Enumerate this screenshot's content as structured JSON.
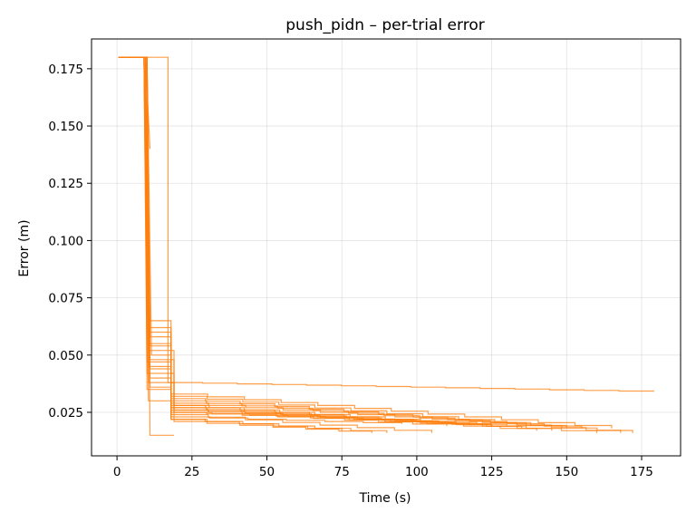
{
  "chart_data": {
    "type": "line",
    "title": "push_pidn – per-trial error",
    "xlabel": "Time (s)",
    "ylabel": "Error (m)",
    "xlim": [
      -8.5,
      188
    ],
    "ylim": [
      0.006,
      0.188
    ],
    "xticks": [
      0,
      25,
      50,
      75,
      100,
      125,
      150,
      175
    ],
    "yticks": [
      0.025,
      0.05,
      0.075,
      0.1,
      0.125,
      0.15,
      0.175
    ],
    "ytick_labels": [
      "0.025",
      "0.050",
      "0.075",
      "0.100",
      "0.125",
      "0.150",
      "0.175"
    ],
    "grid": true,
    "line_color": "#ff7f0e",
    "series": [
      {
        "x": [
          0.5,
          17,
          17,
          179
        ],
        "y": [
          0.18,
          0.18,
          0.038,
          0.034
        ]
      },
      {
        "x": [
          0.5,
          9,
          10,
          18,
          18,
          165
        ],
        "y": [
          0.18,
          0.18,
          0.055,
          0.055,
          0.033,
          0.018
        ]
      },
      {
        "x": [
          0.5,
          9.5,
          11,
          18,
          18,
          172
        ],
        "y": [
          0.18,
          0.18,
          0.065,
          0.065,
          0.03,
          0.016
        ]
      },
      {
        "x": [
          0.5,
          10,
          11,
          19,
          19,
          160
        ],
        "y": [
          0.18,
          0.18,
          0.048,
          0.048,
          0.028,
          0.016
        ]
      },
      {
        "x": [
          0.5,
          9,
          10.5,
          18,
          18,
          150
        ],
        "y": [
          0.18,
          0.18,
          0.06,
          0.06,
          0.032,
          0.018
        ]
      },
      {
        "x": [
          0.5,
          10,
          11.5,
          18,
          18,
          140
        ],
        "y": [
          0.18,
          0.18,
          0.05,
          0.05,
          0.027,
          0.017
        ]
      },
      {
        "x": [
          0.5,
          9.5,
          10.5,
          18,
          18,
          130
        ],
        "y": [
          0.18,
          0.18,
          0.045,
          0.045,
          0.026,
          0.019
        ]
      },
      {
        "x": [
          0.5,
          9,
          10,
          19,
          19,
          120
        ],
        "y": [
          0.18,
          0.18,
          0.042,
          0.042,
          0.025,
          0.02
        ]
      },
      {
        "x": [
          0.5,
          10,
          11,
          18,
          18,
          105
        ],
        "y": [
          0.18,
          0.18,
          0.04,
          0.04,
          0.024,
          0.016
        ]
      },
      {
        "x": [
          0.5,
          9.5,
          11,
          18,
          18,
          90
        ],
        "y": [
          0.18,
          0.18,
          0.036,
          0.036,
          0.022,
          0.016
        ]
      },
      {
        "x": [
          0.5,
          9,
          10.5,
          19,
          19,
          85
        ],
        "y": [
          0.18,
          0.18,
          0.052,
          0.052,
          0.021,
          0.016
        ]
      },
      {
        "x": [
          0.5,
          10,
          11,
          18,
          18,
          155
        ],
        "y": [
          0.18,
          0.18,
          0.058,
          0.058,
          0.029,
          0.018
        ]
      },
      {
        "x": [
          0.5,
          9.5,
          10,
          18,
          18,
          168
        ],
        "y": [
          0.18,
          0.18,
          0.047,
          0.047,
          0.031,
          0.016
        ]
      },
      {
        "x": [
          0.5,
          9,
          11,
          18,
          18,
          145
        ],
        "y": [
          0.18,
          0.18,
          0.044,
          0.044,
          0.028,
          0.017
        ]
      },
      {
        "x": [
          0.5,
          10,
          10.5,
          19,
          19,
          110
        ],
        "y": [
          0.18,
          0.18,
          0.038,
          0.038,
          0.026,
          0.019
        ]
      },
      {
        "x": [
          0.5,
          9.5,
          10,
          18,
          18,
          95
        ],
        "y": [
          0.18,
          0.18,
          0.035,
          0.035,
          0.023,
          0.02
        ]
      },
      {
        "x": [
          0.5,
          9,
          10.5,
          18,
          18,
          75
        ],
        "y": [
          0.18,
          0.18,
          0.03,
          0.03,
          0.022,
          0.017
        ]
      },
      {
        "x": [
          0.5,
          10,
          11,
          11,
          19
        ],
        "y": [
          0.18,
          0.18,
          0.016,
          0.015,
          0.015
        ]
      },
      {
        "x": [
          0.5,
          9.5,
          11,
          11
        ],
        "y": [
          0.18,
          0.18,
          0.14,
          0.14
        ]
      },
      {
        "x": [
          0.5,
          9,
          10.5,
          18,
          18,
          135
        ],
        "y": [
          0.18,
          0.18,
          0.062,
          0.062,
          0.027,
          0.018
        ]
      },
      {
        "x": [
          0.5,
          10,
          11,
          18,
          18,
          125
        ],
        "y": [
          0.18,
          0.18,
          0.054,
          0.054,
          0.025,
          0.019
        ]
      }
    ]
  }
}
